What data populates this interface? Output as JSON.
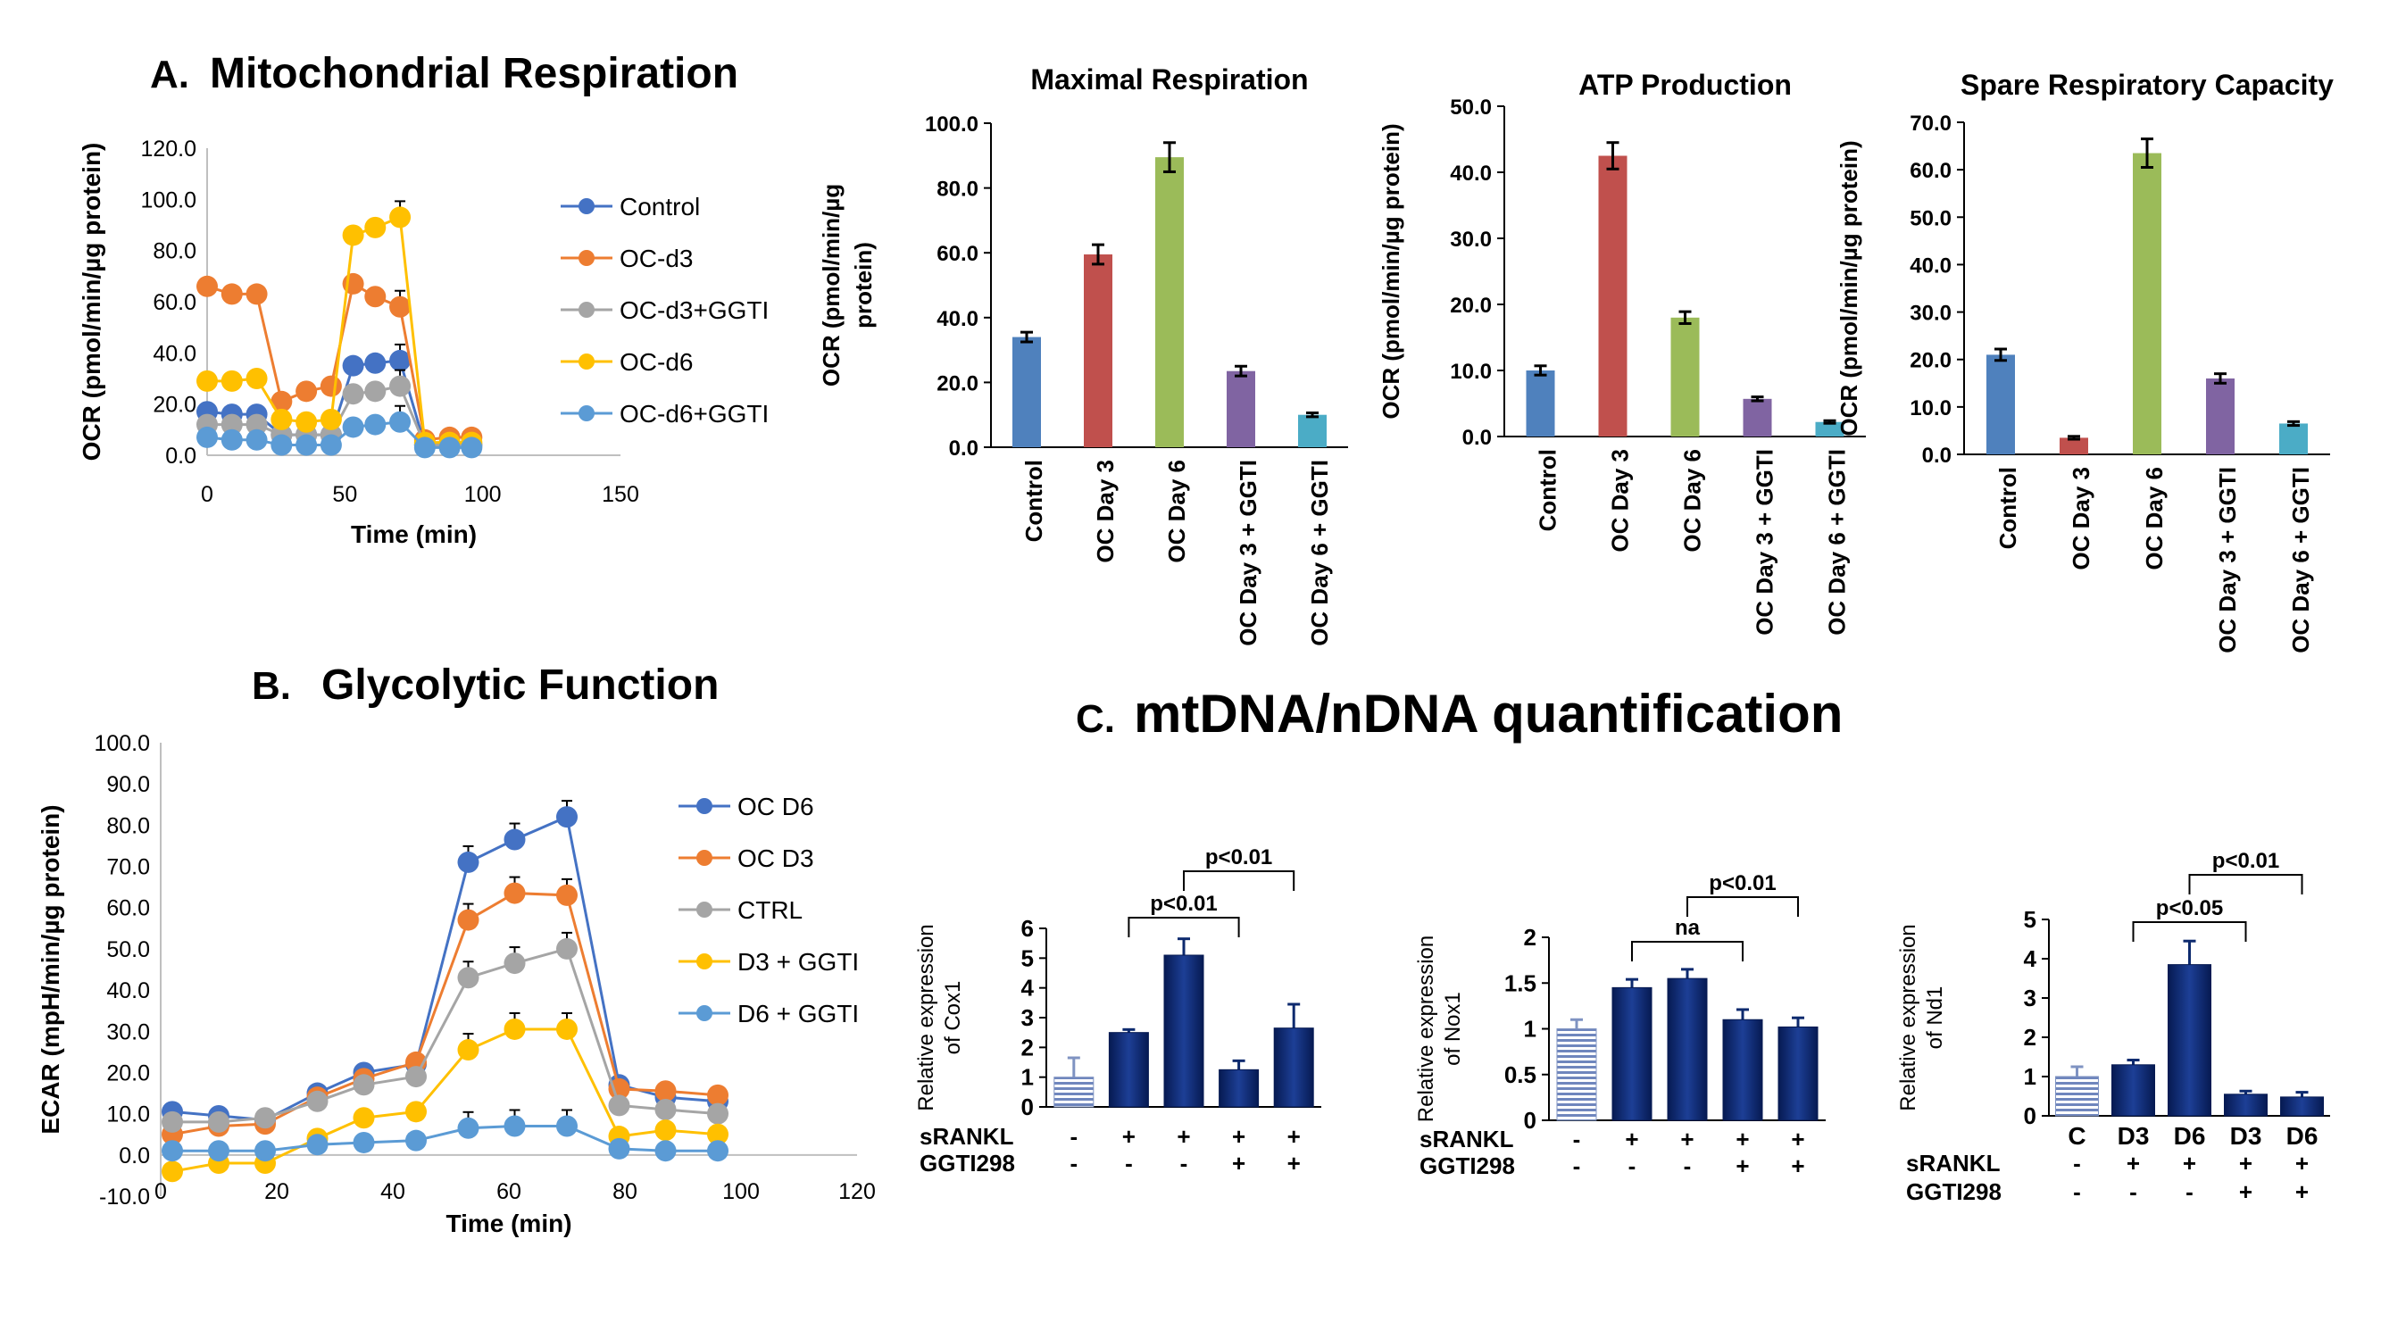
{
  "figure": {
    "panelA": {
      "letter": "A.",
      "title": "Mitochondrial Respiration"
    },
    "panelB": {
      "letter": "B.",
      "title": "Glycolytic Function"
    },
    "panelC": {
      "letter": "C.",
      "title": "mtDNA/nDNA quantification"
    }
  },
  "colors": {
    "blue": "#4472c4",
    "orange": "#ed7d31",
    "gray": "#a5a5a5",
    "gold": "#ffc000",
    "lightblue": "#5b9bd5",
    "bar_blue": "#4f81bd",
    "bar_red": "#c0504d",
    "bar_green": "#9bbb59",
    "bar_purple": "#8064a2",
    "bar_teal": "#4bacc6",
    "navy": "#0d2a6e",
    "stripe": "#7f93c2"
  },
  "chart_data": [
    {
      "id": "mito_line",
      "type": "line",
      "title": "",
      "xlabel": "Time (min)",
      "ylabel": "OCR (pmol/min/µg protein)",
      "xlim": [
        0,
        150
      ],
      "ylim": [
        0,
        120
      ],
      "xticks": [
        "0",
        "50",
        "100",
        "150"
      ],
      "yticks": [
        "0.0",
        "20.0",
        "40.0",
        "60.0",
        "80.0",
        "100.0",
        "120.0"
      ],
      "x": [
        0,
        9,
        18,
        27,
        36,
        45,
        53,
        61,
        70,
        79,
        88,
        96
      ],
      "series": [
        {
          "name": "Control",
          "color": "#4472c4",
          "values": [
            17,
            16,
            16,
            8,
            8,
            8,
            35,
            36,
            37,
            4,
            4,
            4
          ]
        },
        {
          "name": "OC-d3",
          "color": "#ed7d31",
          "values": [
            66,
            63,
            63,
            21,
            25,
            27,
            67,
            62,
            58,
            6,
            7,
            7
          ]
        },
        {
          "name": "OC-d3+GGTI",
          "color": "#a5a5a5",
          "values": [
            12,
            12,
            12,
            8,
            8,
            8,
            24,
            25,
            27,
            4,
            4,
            4
          ]
        },
        {
          "name": "OC-d6",
          "color": "#ffc000",
          "values": [
            29,
            29,
            30,
            14,
            13,
            14,
            86,
            89,
            93,
            5,
            5,
            5
          ]
        },
        {
          "name": "OC-d6+GGTI",
          "color": "#5b9bd5",
          "values": [
            7,
            6,
            6,
            4,
            4,
            4,
            11,
            12,
            13,
            3,
            3,
            3
          ]
        }
      ],
      "legend": "right"
    },
    {
      "id": "maximal",
      "type": "bar",
      "title": "Maximal Respiration",
      "ylabel": "OCR (pmol/min/µg protein)",
      "ylim": [
        0,
        100
      ],
      "yticks": [
        "0.0",
        "20.0",
        "40.0",
        "60.0",
        "80.0",
        "100.0"
      ],
      "categories": [
        "Control",
        "OC Day 3",
        "OC Day 6",
        "OC Day 3 + GGTI",
        "OC Day 6 + GGTI"
      ],
      "values": [
        34,
        59.5,
        89.5,
        23.5,
        10
      ],
      "errors": [
        1.5,
        3,
        4.5,
        1.5,
        0.6
      ],
      "colors": [
        "#4f81bd",
        "#c0504d",
        "#9bbb59",
        "#8064a2",
        "#4bacc6"
      ]
    },
    {
      "id": "atp",
      "type": "bar",
      "title": "ATP Production",
      "ylabel": "OCR (pmol/min/µg protein)",
      "ylim": [
        0,
        50
      ],
      "yticks": [
        "0.0",
        "10.0",
        "20.0",
        "30.0",
        "40.0",
        "50.0"
      ],
      "categories": [
        "Control",
        "OC Day 3",
        "OC Day 6",
        "OC Day 3 + GGTI",
        "OC Day 6 + GGTI"
      ],
      "values": [
        10,
        42.5,
        18,
        5.7,
        2.2
      ],
      "errors": [
        0.7,
        2,
        0.9,
        0.3,
        0.2
      ],
      "colors": [
        "#4f81bd",
        "#c0504d",
        "#9bbb59",
        "#8064a2",
        "#4bacc6"
      ]
    },
    {
      "id": "spare",
      "type": "bar",
      "title": "Spare Respiratory Capacity",
      "ylabel": "OCR (pmol/min/µg protein)",
      "ylim": [
        0,
        70
      ],
      "yticks": [
        "0.0",
        "10.0",
        "20.0",
        "30.0",
        "40.0",
        "50.0",
        "60.0",
        "70.0"
      ],
      "categories": [
        "Control",
        "OC Day 3",
        "OC Day 6",
        "OC Day 3 + GGTI",
        "OC Day 6 + GGTI"
      ],
      "values": [
        21,
        3.5,
        63.5,
        16,
        6.5
      ],
      "errors": [
        1.2,
        0.3,
        3,
        1,
        0.4
      ],
      "colors": [
        "#4f81bd",
        "#c0504d",
        "#9bbb59",
        "#8064a2",
        "#4bacc6"
      ]
    },
    {
      "id": "glyco_line",
      "type": "line",
      "title": "",
      "xlabel": "Time (min)",
      "ylabel": "ECAR (mpH/min/µg protein)",
      "xlim": [
        0,
        120
      ],
      "ylim": [
        -10,
        100
      ],
      "xticks": [
        "0",
        "20",
        "40",
        "60",
        "80",
        "100",
        "120"
      ],
      "yticks": [
        "-10.0",
        "0.0",
        "10.0",
        "20.0",
        "30.0",
        "40.0",
        "50.0",
        "60.0",
        "70.0",
        "80.0",
        "90.0",
        "100.0"
      ],
      "x": [
        2,
        10,
        18,
        27,
        35,
        44,
        53,
        61,
        70,
        79,
        87,
        96
      ],
      "series": [
        {
          "name": "OC D6",
          "color": "#4472c4",
          "values": [
            10.5,
            9.5,
            8.5,
            15,
            20,
            22,
            71,
            76.5,
            82,
            17,
            14,
            13
          ]
        },
        {
          "name": "OC D3",
          "color": "#ed7d31",
          "values": [
            5,
            7,
            7.5,
            14,
            18.5,
            22.5,
            57,
            63.5,
            63,
            16,
            15.5,
            14.5
          ]
        },
        {
          "name": "CTRL",
          "color": "#a5a5a5",
          "values": [
            8,
            8,
            9,
            13,
            17,
            19,
            43,
            46.5,
            50,
            12,
            11,
            10
          ]
        },
        {
          "name": "D3 + GGTI",
          "color": "#ffc000",
          "values": [
            -4,
            -2,
            -2,
            4,
            9,
            10.5,
            25.5,
            30.5,
            30.5,
            4.5,
            6,
            5
          ]
        },
        {
          "name": "D6 + GGTI",
          "color": "#5b9bd5",
          "values": [
            1,
            1,
            1,
            2.5,
            3,
            3.5,
            6.5,
            7,
            7,
            1.5,
            1,
            1
          ]
        }
      ],
      "legend": "right"
    },
    {
      "id": "cox1",
      "type": "bar",
      "ylabel": "Relative expression of Cox1",
      "ylim": [
        0,
        6
      ],
      "yticks": [
        "0",
        "1",
        "2",
        "3",
        "4",
        "5",
        "6"
      ],
      "values": [
        1,
        2.5,
        5.1,
        1.25,
        2.65
      ],
      "errors": [
        0.65,
        0.1,
        0.55,
        0.3,
        0.8
      ],
      "row1_label": "sRANKL",
      "row1": [
        "-",
        "+",
        "+",
        "+",
        "+"
      ],
      "row2_label": "GGTI298",
      "row2": [
        "-",
        "-",
        "-",
        "+",
        "+"
      ],
      "brackets": [
        {
          "from": 1,
          "to": 3,
          "label": "p<0.01"
        },
        {
          "from": 2,
          "to": 4,
          "label": "p<0.01"
        }
      ]
    },
    {
      "id": "nox1",
      "type": "bar",
      "ylabel": "Relative expression of Nox1",
      "ylim": [
        0,
        2
      ],
      "yticks": [
        "0",
        "0.5",
        "1",
        "1.5",
        "2"
      ],
      "values": [
        1,
        1.45,
        1.55,
        1.1,
        1.02
      ],
      "errors": [
        0.1,
        0.09,
        0.1,
        0.11,
        0.1
      ],
      "row1_label": "sRANKL",
      "row1": [
        "-",
        "+",
        "+",
        "+",
        "+"
      ],
      "row2_label": "GGTI298",
      "row2": [
        "-",
        "-",
        "-",
        "+",
        "+"
      ],
      "brackets": [
        {
          "from": 1,
          "to": 3,
          "label": "na"
        },
        {
          "from": 2,
          "to": 4,
          "label": "p<0.01"
        }
      ]
    },
    {
      "id": "nd1",
      "type": "bar",
      "ylabel": "Relative expression of Nd1",
      "ylim": [
        0,
        5
      ],
      "yticks": [
        "0",
        "1",
        "2",
        "3",
        "4",
        "5"
      ],
      "values": [
        1,
        1.3,
        3.85,
        0.55,
        0.48
      ],
      "errors": [
        0.25,
        0.12,
        0.6,
        0.08,
        0.12
      ],
      "categories": [
        "C",
        "D3",
        "D6",
        "D3",
        "D6"
      ],
      "row1_label": "sRANKL",
      "row1": [
        "-",
        "+",
        "+",
        "+",
        "+"
      ],
      "row2_label": "GGTI298",
      "row2": [
        "-",
        "-",
        "-",
        "+",
        "+"
      ],
      "brackets": [
        {
          "from": 1,
          "to": 3,
          "label": "p<0.05"
        },
        {
          "from": 2,
          "to": 4,
          "label": "p<0.01"
        }
      ]
    }
  ]
}
